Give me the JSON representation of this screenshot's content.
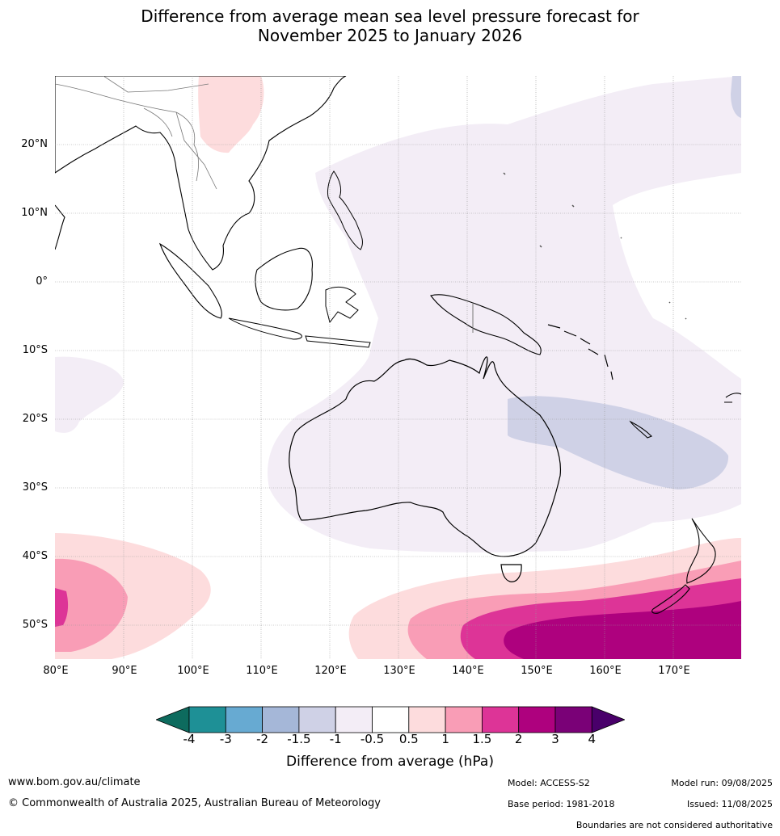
{
  "title_line1": "Difference from average mean sea level pressure forecast for",
  "title_line2": "November 2025 to January 2026",
  "lat_labels": [
    "20°N",
    "10°N",
    "0°",
    "10°S",
    "20°S",
    "30°S",
    "40°S",
    "50°S"
  ],
  "lon_labels": [
    "80°E",
    "90°E",
    "100°E",
    "110°E",
    "120°E",
    "130°E",
    "140°E",
    "150°E",
    "160°E",
    "170°E"
  ],
  "colorbar": {
    "ticks": [
      "-4",
      "-3",
      "-2",
      "-1.5",
      "-1",
      "-0.5",
      "0.5",
      "1",
      "1.5",
      "2",
      "3",
      "4"
    ],
    "colors": [
      "#0d6b5e",
      "#1e9096",
      "#67aad2",
      "#a5b7d8",
      "#cfd1e6",
      "#f3edf6",
      "#ffffff",
      "#fddcdd",
      "#f99db6",
      "#dd3497",
      "#ae017e",
      "#7a0177",
      "#49006a"
    ],
    "label": "Difference from average (hPa)"
  },
  "footer": {
    "website": "www.bom.gov.au/climate",
    "copyright": "© Commonwealth of Australia 2025, Australian Bureau of Meteorology",
    "model": "Model: ACCESS-S2",
    "base_period": "Base period: 1981-2018",
    "model_run": "Model run: 09/08/2025",
    "issued": "Issued: 11/08/2025",
    "disclaimer": "Boundaries are not considered authoritative"
  }
}
